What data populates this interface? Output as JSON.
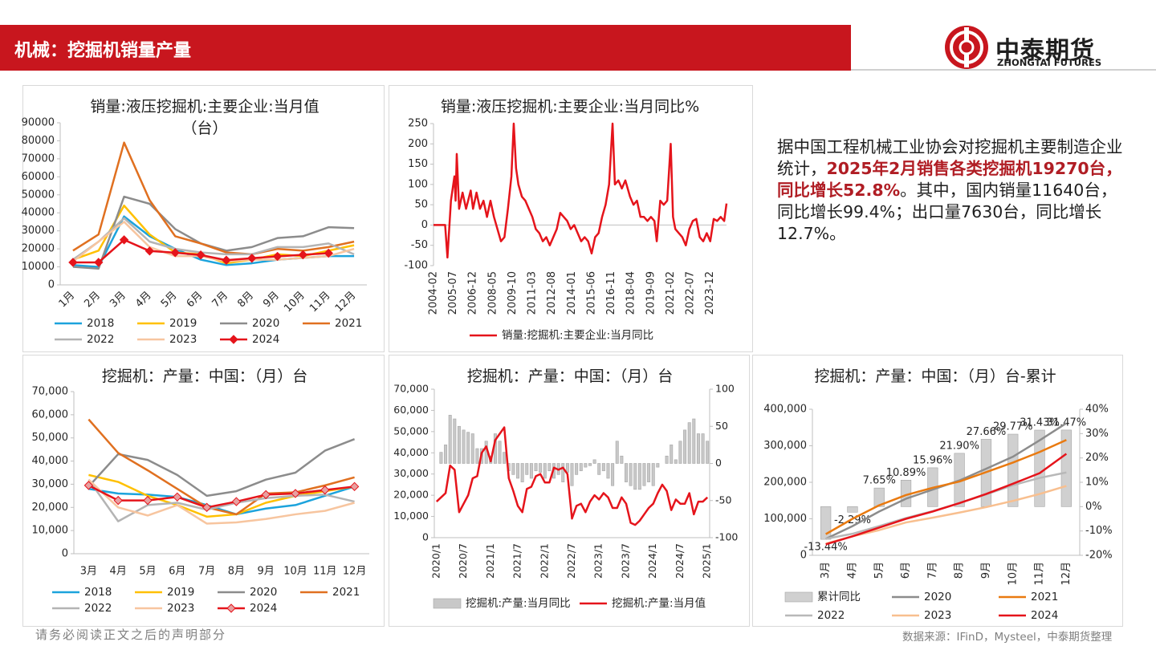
{
  "header": {
    "title": "机械：挖掘机销量产量"
  },
  "logo": {
    "name": "中泰期货",
    "en": "ZHONGTAI FUTURES"
  },
  "summary": [
    "据中国工程机械工业协会对挖掘机主要制造企业统计，",
    "2025年2月销售各类挖掘机19270台，同比增长52.8%",
    "。其中，国内销量11640台，同比增长99.4%；出口量7630台，同比增长12.7%。"
  ],
  "footer": {
    "disclaimer": "请务必阅读正文之后的声明部分",
    "source": "数据来源：IFinD，Mysteel，中泰期货整理"
  },
  "chart_data": [
    {
      "type": "line",
      "title": "销量:液压挖掘机:主要企业:当月值（台）",
      "categories": [
        "1月",
        "2月",
        "3月",
        "4月",
        "5月",
        "6月",
        "7月",
        "8月",
        "9月",
        "10月",
        "11月",
        "12月"
      ],
      "ylim": [
        0,
        90000
      ],
      "yticks": [
        0,
        10000,
        20000,
        30000,
        40000,
        50000,
        60000,
        70000,
        80000,
        90000
      ],
      "series": [
        {
          "name": "2018",
          "color": "#1ca3dc",
          "values": [
            11000,
            10000,
            38000,
            27000,
            20000,
            14000,
            11000,
            12000,
            14000,
            15000,
            16000,
            16000
          ]
        },
        {
          "name": "2019",
          "color": "#ffc000",
          "values": [
            14000,
            19000,
            44000,
            28000,
            18000,
            17000,
            12000,
            14000,
            17000,
            16000,
            19000,
            22000
          ]
        },
        {
          "name": "2020",
          "color": "#8c8c8c",
          "values": [
            10000,
            9000,
            49000,
            45000,
            31000,
            23000,
            19000,
            21000,
            26000,
            27000,
            32000,
            31500
          ]
        },
        {
          "name": "2021",
          "color": "#e07020",
          "values": [
            19000,
            28000,
            79000,
            47000,
            27000,
            23000,
            18000,
            17000,
            20000,
            19000,
            21000,
            24000
          ]
        },
        {
          "name": "2022",
          "color": "#b4b4b4",
          "values": [
            14000,
            24000,
            37000,
            24000,
            20000,
            18000,
            17000,
            17000,
            21000,
            21000,
            23000,
            17000
          ]
        },
        {
          "name": "2023",
          "color": "#f7c59f",
          "values": [
            13000,
            24000,
            35000,
            21000,
            16000,
            16000,
            13000,
            14000,
            14000,
            15000,
            16000,
            20000
          ]
        },
        {
          "name": "2024",
          "color": "#e5141b",
          "marker": "diamond",
          "marker_fill": "#e5141b",
          "values": [
            12500,
            12500,
            25000,
            18800,
            17900,
            16600,
            13700,
            14800,
            15800,
            16700,
            17600,
            null
          ]
        }
      ]
    },
    {
      "type": "line",
      "title": "销量:液压挖掘机:主要企业:当月同比%",
      "xlim": [
        "2004-02",
        "2025-02"
      ],
      "xticks": [
        "2004-02",
        "2005-07",
        "2006-12",
        "2008-05",
        "2009-10",
        "2011-03",
        "2012-08",
        "2014-01",
        "2015-06",
        "2016-11",
        "2018-04",
        "2019-09",
        "2021-02",
        "2022-07",
        "2023-12"
      ],
      "x": [
        "2004-02",
        "2004-12",
        "2005-02",
        "2005-05",
        "2005-08",
        "2005-09",
        "2005-10",
        "2005-12",
        "2006-03",
        "2006-06",
        "2006-10",
        "2006-12",
        "2007-03",
        "2007-06",
        "2007-09",
        "2007-12",
        "2008-03",
        "2008-06",
        "2008-09",
        "2008-12",
        "2009-03",
        "2009-06",
        "2009-09",
        "2009-11",
        "2010-01",
        "2010-03",
        "2010-06",
        "2010-09",
        "2010-12",
        "2011-03",
        "2011-06",
        "2011-09",
        "2011-12",
        "2012-03",
        "2012-06",
        "2012-09",
        "2012-12",
        "2013-03",
        "2013-06",
        "2013-09",
        "2013-12",
        "2014-03",
        "2014-06",
        "2014-09",
        "2014-12",
        "2015-03",
        "2015-06",
        "2015-09",
        "2015-12",
        "2016-03",
        "2016-06",
        "2016-09",
        "2016-12",
        "2017-02",
        "2017-05",
        "2017-08",
        "2017-11",
        "2018-03",
        "2018-06",
        "2018-09",
        "2018-12",
        "2019-03",
        "2019-06",
        "2019-09",
        "2019-12",
        "2020-02",
        "2020-05",
        "2020-08",
        "2020-11",
        "2021-02",
        "2021-04",
        "2021-06",
        "2021-09",
        "2021-12",
        "2022-03",
        "2022-06",
        "2022-09",
        "2022-12",
        "2023-03",
        "2023-06",
        "2023-09",
        "2023-12",
        "2024-03",
        "2024-06",
        "2024-09",
        "2024-12",
        "2025-02"
      ],
      "ylim": [
        -100,
        250
      ],
      "yticks": [
        -100,
        -50,
        0,
        50,
        100,
        150,
        200,
        250
      ],
      "series": [
        {
          "name": "销量:挖掘机:主要企业:当月同比",
          "color": "#e5141b",
          "values": [
            0,
            0,
            -80,
            60,
            120,
            60,
            175,
            40,
            80,
            40,
            85,
            40,
            80,
            40,
            60,
            20,
            60,
            20,
            -10,
            -40,
            -30,
            40,
            120,
            250,
            140,
            100,
            70,
            60,
            40,
            20,
            -10,
            -20,
            -40,
            -30,
            -50,
            -30,
            -10,
            30,
            20,
            10,
            -10,
            0,
            -20,
            -40,
            -30,
            -40,
            -70,
            -30,
            -20,
            20,
            50,
            100,
            250,
            100,
            110,
            90,
            110,
            70,
            50,
            60,
            20,
            20,
            10,
            20,
            10,
            -40,
            60,
            50,
            60,
            200,
            20,
            -10,
            -20,
            -30,
            -50,
            -10,
            10,
            15,
            -30,
            -40,
            -20,
            -40,
            15,
            10,
            20,
            10,
            53
          ]
        }
      ]
    },
    {
      "type": "line",
      "title": "挖掘机：产量：中国：（月）台",
      "categories": [
        "3月",
        "4月",
        "5月",
        "6月",
        "7月",
        "8月",
        "9月",
        "10月",
        "11月",
        "12月"
      ],
      "ylim": [
        0,
        70000
      ],
      "yticks": [
        0,
        {
          "value": 10000,
          "label": "10,000"
        },
        {
          "value": 20000,
          "label": "20,000"
        },
        {
          "value": 30000,
          "label": "30,000"
        },
        {
          "value": 40000,
          "label": "40,000"
        },
        {
          "value": 50000,
          "label": "50,000"
        },
        {
          "value": 60000,
          "label": "60,000"
        },
        {
          "value": 70000,
          "label": "70,000"
        }
      ],
      "series": [
        {
          "name": "2018",
          "color": "#1ca3dc",
          "values": [
            28000,
            26000,
            25500,
            24500,
            21000,
            17000,
            19500,
            21000,
            25000,
            29000
          ]
        },
        {
          "name": "2019",
          "color": "#ffc000",
          "values": [
            34000,
            31000,
            25000,
            21000,
            16000,
            17000,
            22000,
            25000,
            27000,
            29000
          ]
        },
        {
          "name": "2020",
          "color": "#8c8c8c",
          "values": [
            29000,
            43000,
            40500,
            34000,
            25000,
            27000,
            32000,
            35000,
            44500,
            49500
          ]
        },
        {
          "name": "2021",
          "color": "#e07020",
          "values": [
            58000,
            43500,
            36000,
            28000,
            20000,
            17000,
            26000,
            26500,
            29500,
            33000
          ]
        },
        {
          "name": "2022",
          "color": "#b4b4b4",
          "values": [
            32000,
            14000,
            21000,
            22000,
            19000,
            22000,
            24000,
            25000,
            25500,
            22500
          ]
        },
        {
          "name": "2023",
          "color": "#f7c59f",
          "values": [
            32000,
            20000,
            16500,
            21000,
            13000,
            13500,
            15000,
            17000,
            18500,
            22000
          ]
        },
        {
          "name": "2024",
          "color": "#e5141b",
          "marker": "diamond",
          "marker_fill": "#e8a0a0",
          "values": [
            29500,
            23000,
            23000,
            24500,
            20000,
            22500,
            25500,
            26000,
            27500,
            29000
          ]
        }
      ]
    },
    {
      "type": "combo",
      "title": "挖掘机：产量：中国：（月）台",
      "categories": [
        "2020/1",
        null,
        null,
        null,
        null,
        null,
        "2020/7",
        null,
        null,
        null,
        null,
        null,
        "2021/1",
        null,
        null,
        null,
        null,
        null,
        "2021/7",
        null,
        null,
        null,
        null,
        null,
        "2022/1",
        null,
        null,
        null,
        null,
        null,
        "2022/7",
        null,
        null,
        null,
        null,
        null,
        "2023/1",
        null,
        null,
        null,
        null,
        null,
        "2023/7",
        null,
        null,
        null,
        null,
        null,
        "2024/1",
        null,
        null,
        null,
        null,
        null,
        "2024/7",
        null,
        null,
        null,
        null,
        null,
        "2025/1"
      ],
      "ylim": [
        0,
        70000
      ],
      "yticks": [
        0,
        {
          "value": 10000,
          "label": "10,000"
        },
        {
          "value": 20000,
          "label": "20,000"
        },
        {
          "value": 30000,
          "label": "30,000"
        },
        {
          "value": 40000,
          "label": "40,000"
        },
        {
          "value": 50000,
          "label": "50,000"
        },
        {
          "value": 60000,
          "label": "60,000"
        },
        {
          "value": 70000,
          "label": "70,000"
        }
      ],
      "y2lim": [
        -100,
        100
      ],
      "y2ticks": [
        -100,
        -50,
        0,
        50,
        100
      ],
      "series": [
        {
          "name": "挖掘机:产量:当月同比",
          "type": "bar",
          "axis": "y2",
          "color": "#c8c8c8",
          "values": [
            null,
            15,
            25,
            65,
            60,
            50,
            45,
            42,
            40,
            20,
            20,
            30,
            10,
            40,
            30,
            15,
            -10,
            -15,
            -20,
            -25,
            -15,
            -20,
            -10,
            -12,
            -20,
            -10,
            -20,
            -15,
            -25,
            -12,
            -30,
            -15,
            -10,
            -5,
            -3,
            5,
            -15,
            -10,
            -20,
            -30,
            30,
            10,
            -25,
            -30,
            -35,
            -35,
            -30,
            -25,
            -30,
            -5,
            0,
            10,
            25,
            5,
            30,
            45,
            55,
            60,
            40,
            40,
            30
          ]
        },
        {
          "name": "挖掘机:产量:当月值",
          "type": "line",
          "color": "#e5141b",
          "values": [
            17000,
            19000,
            21000,
            34000,
            32000,
            12000,
            16000,
            20000,
            28000,
            29000,
            40000,
            43000,
            36000,
            46000,
            49000,
            52000,
            28000,
            22000,
            15000,
            12000,
            23000,
            24000,
            29000,
            30000,
            26000,
            26000,
            33000,
            32000,
            33000,
            30000,
            9000,
            15000,
            16000,
            12000,
            17000,
            20000,
            18000,
            21000,
            19000,
            14000,
            14000,
            19000,
            16000,
            7000,
            6000,
            8000,
            11000,
            14000,
            16000,
            21000,
            25000,
            22000,
            13000,
            18000,
            16000,
            16000,
            21000,
            11000,
            17000,
            17000,
            19000
          ]
        }
      ]
    },
    {
      "type": "combo",
      "title": "挖掘机：产量：中国：（月）台-累计",
      "categories": [
        "3月",
        "4月",
        "5月",
        "6月",
        "7月",
        "8月",
        "9月",
        "10月",
        "11月",
        "12月"
      ],
      "ylim": [
        0,
        400000
      ],
      "yticks": [
        0,
        {
          "value": 100000,
          "label": "100,000"
        },
        {
          "value": 200000,
          "label": "200,000"
        },
        {
          "value": 300000,
          "label": "300,000"
        },
        {
          "value": 400000,
          "label": "400,000"
        }
      ],
      "y2lim": [
        -20,
        40
      ],
      "y2ticks": [
        {
          "value": -20,
          "label": "-20%"
        },
        {
          "value": -10,
          "label": "-10%"
        },
        {
          "value": 0,
          "label": "0%"
        },
        {
          "value": 10,
          "label": "10%"
        },
        {
          "value": 20,
          "label": "20%"
        },
        {
          "value": 30,
          "label": "30%"
        },
        {
          "value": 40,
          "label": "40%"
        }
      ],
      "series": [
        {
          "name": "累计同比",
          "type": "bar",
          "axis": "y2",
          "color": "#d0d0d0",
          "values": [
            -13.44,
            -2.29,
            7.65,
            10.89,
            15.96,
            21.9,
            27.66,
            29.77,
            31.43,
            31.47
          ],
          "value_labels": [
            "-13.44%",
            "-2.29%",
            "7.65%",
            "10.89%",
            "15.96%",
            "21.90%",
            "27.66%",
            "29.77%",
            "31.43%",
            "31.47%"
          ]
        },
        {
          "name": "2020",
          "type": "line",
          "color": "#8c8c8c",
          "values": [
            45000,
            80000,
            120000,
            155000,
            180000,
            205000,
            237000,
            270000,
            315000,
            362000
          ]
        },
        {
          "name": "2021",
          "type": "line",
          "color": "#e97a10",
          "values": [
            58000,
            100000,
            137000,
            165000,
            185000,
            202000,
            228000,
            254000,
            283000,
            316000
          ]
        },
        {
          "name": "2022",
          "type": "line",
          "color": "#b8b8b8",
          "values": [
            45000,
            59000,
            80000,
            102000,
            121000,
            143000,
            167000,
            192000,
            212000,
            227000
          ]
        },
        {
          "name": "2023",
          "type": "line",
          "color": "#f8bf8f",
          "values": [
            32000,
            52000,
            69000,
            90000,
            103000,
            117000,
            132000,
            149000,
            168000,
            190000
          ]
        },
        {
          "name": "2024",
          "type": "line",
          "color": "#e5141b",
          "values": [
            30000,
            52000,
            76000,
            100000,
            120000,
            143000,
            168000,
            196000,
            225000,
            278000
          ]
        }
      ]
    }
  ]
}
